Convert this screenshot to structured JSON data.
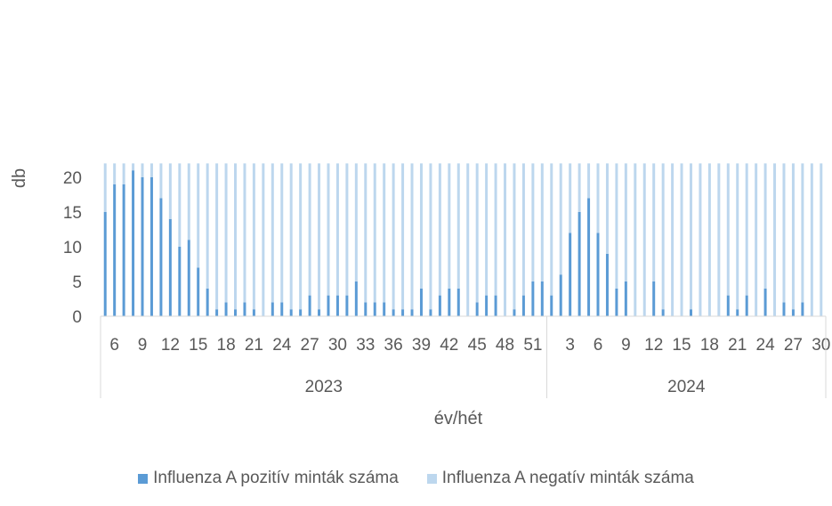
{
  "chart_data": {
    "type": "bar",
    "stacked": true,
    "xlabel": "év/hét",
    "ylabel": "db",
    "ylim": [
      0,
      22
    ],
    "yticks": [
      0,
      5,
      10,
      15,
      20
    ],
    "grid": false,
    "legend_position": "bottom",
    "groups": [
      {
        "label": "2023",
        "weeks": [
          5,
          6,
          7,
          8,
          9,
          10,
          11,
          12,
          13,
          14,
          15,
          16,
          17,
          18,
          19,
          20,
          21,
          22,
          23,
          24,
          25,
          26,
          27,
          28,
          29,
          30,
          31,
          32,
          33,
          34,
          35,
          36,
          37,
          38,
          39,
          40,
          41,
          42,
          43,
          44,
          45,
          46,
          47,
          48,
          49,
          50,
          51,
          52
        ]
      },
      {
        "label": "2024",
        "weeks": [
          1,
          2,
          3,
          4,
          5,
          6,
          7,
          8,
          9,
          10,
          11,
          12,
          13,
          14,
          15,
          16,
          17,
          18,
          19,
          20,
          21,
          22,
          23,
          24,
          25,
          26,
          27,
          28,
          29,
          30
        ]
      }
    ],
    "tick_labels": {
      "2023": [
        "6",
        "9",
        "12",
        "15",
        "18",
        "21",
        "24",
        "27",
        "30",
        "33",
        "36",
        "39",
        "42",
        "45",
        "48",
        "51"
      ],
      "2024": [
        "3",
        "6",
        "9",
        "12",
        "15",
        "18",
        "21",
        "24",
        "27",
        "30"
      ]
    },
    "series": [
      {
        "name": "Influenza A pozitív minták száma",
        "color": "#5b9bd5",
        "values": [
          15,
          19,
          19,
          21,
          20,
          20,
          17,
          14,
          10,
          11,
          7,
          4,
          1,
          2,
          1,
          2,
          1,
          0,
          2,
          2,
          1,
          1,
          3,
          1,
          3,
          3,
          3,
          5,
          2,
          2,
          2,
          1,
          1,
          1,
          4,
          1,
          3,
          4,
          4,
          0,
          2,
          3,
          3,
          0,
          1,
          3,
          5,
          5,
          3,
          6,
          12,
          15,
          17,
          12,
          9,
          4,
          5,
          0,
          0,
          5,
          1,
          0,
          0,
          1,
          0,
          0,
          0,
          3,
          1,
          3,
          0,
          4,
          0,
          2,
          1,
          2,
          0,
          0
        ]
      },
      {
        "name": "Influenza A negatív minták száma",
        "color": "#bdd7ee",
        "values": [
          7,
          3,
          3,
          1,
          2,
          2,
          5,
          8,
          12,
          11,
          15,
          18,
          21,
          20,
          21,
          20,
          21,
          22,
          20,
          20,
          21,
          21,
          19,
          21,
          19,
          19,
          19,
          17,
          20,
          20,
          20,
          21,
          21,
          21,
          18,
          21,
          19,
          18,
          18,
          22,
          20,
          19,
          19,
          22,
          21,
          19,
          17,
          17,
          19,
          16,
          10,
          7,
          5,
          10,
          13,
          18,
          17,
          22,
          22,
          17,
          21,
          22,
          22,
          21,
          22,
          22,
          22,
          19,
          21,
          19,
          22,
          18,
          22,
          20,
          21,
          20,
          22,
          22
        ]
      }
    ]
  }
}
